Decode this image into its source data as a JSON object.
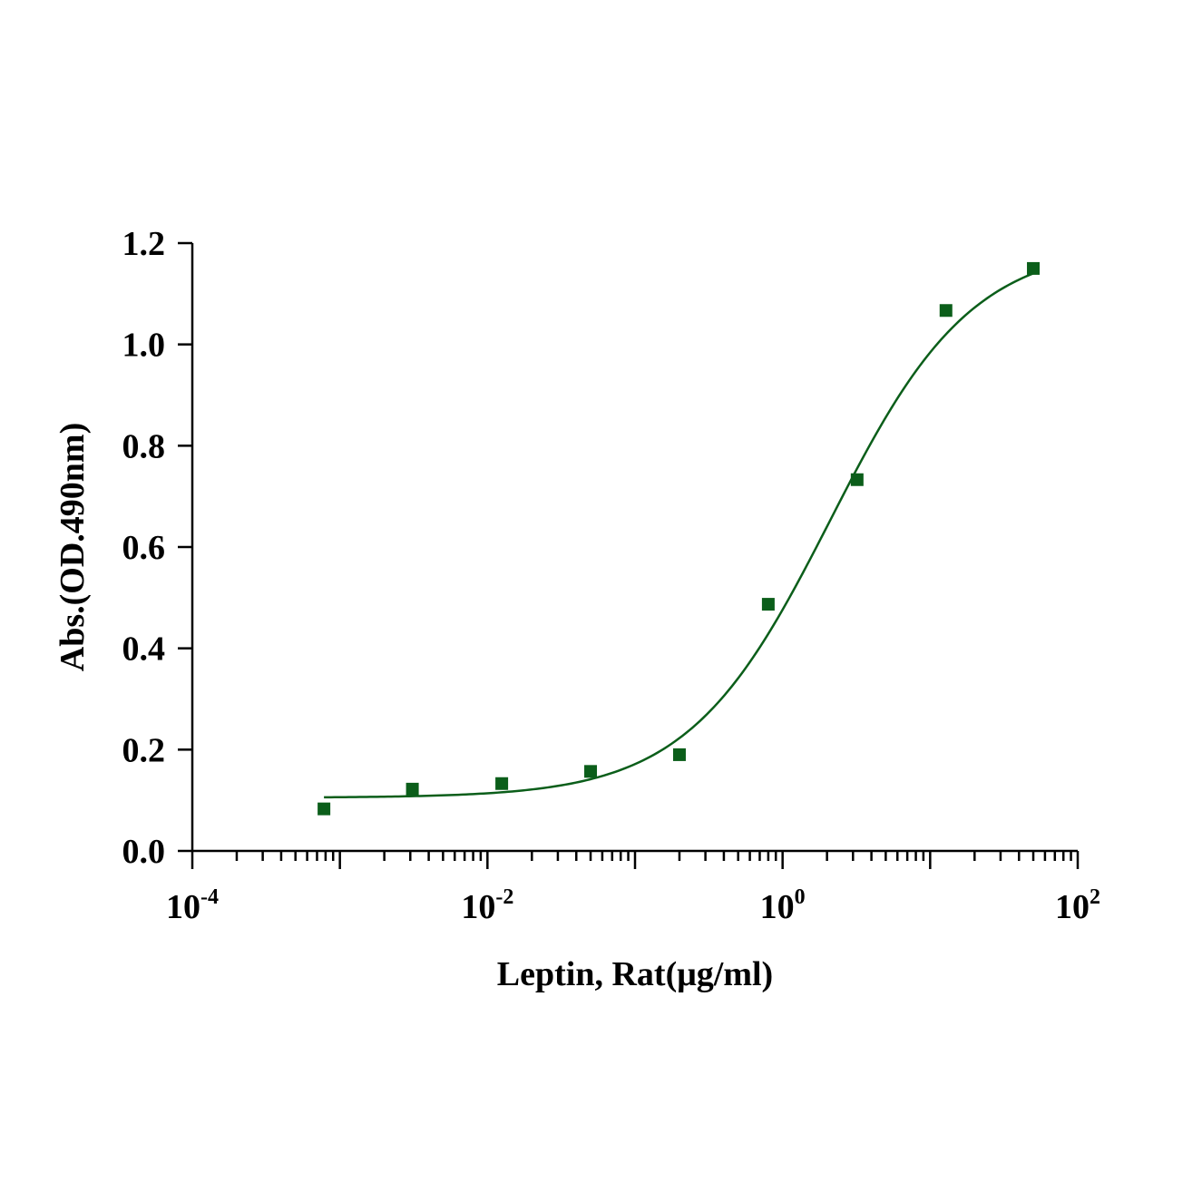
{
  "chart_data": {
    "type": "scatter",
    "xlabel": "Leptin, Rat(μg/ml)",
    "ylabel": "Abs.(OD.490nm)",
    "x_scale": "log10",
    "xlim": [
      0.0001,
      100
    ],
    "ylim": [
      0,
      1.2
    ],
    "y_ticks": [
      {
        "value": 0.0,
        "label": "0.0"
      },
      {
        "value": 0.2,
        "label": "0.2"
      },
      {
        "value": 0.4,
        "label": "0.4"
      },
      {
        "value": 0.6,
        "label": "0.6"
      },
      {
        "value": 0.8,
        "label": "0.8"
      },
      {
        "value": 1.0,
        "label": "1.0"
      },
      {
        "value": 1.2,
        "label": "1.2"
      }
    ],
    "x_ticks": [
      {
        "value": 0.0001,
        "base": "10",
        "exp": "-4"
      },
      {
        "value": 0.01,
        "base": "10",
        "exp": "-2"
      },
      {
        "value": 1,
        "base": "10",
        "exp": "0"
      },
      {
        "value": 100,
        "base": "10",
        "exp": "2"
      }
    ],
    "series": [
      {
        "color": "#0b5e1a",
        "marker": "square",
        "points": [
          {
            "x": 0.00078,
            "y": 0.083
          },
          {
            "x": 0.0031,
            "y": 0.122
          },
          {
            "x": 0.0125,
            "y": 0.133
          },
          {
            "x": 0.05,
            "y": 0.157
          },
          {
            "x": 0.2,
            "y": 0.19
          },
          {
            "x": 0.8,
            "y": 0.487
          },
          {
            "x": 3.2,
            "y": 0.733
          },
          {
            "x": 12.8,
            "y": 1.067
          },
          {
            "x": 50,
            "y": 1.15
          }
        ],
        "fit": {
          "model": "four-parameter logistic",
          "bottom": 0.105,
          "top": 1.2,
          "ec50": 2.1,
          "hill": 0.9,
          "x_range": [
            0.00078,
            50
          ]
        }
      }
    ]
  }
}
